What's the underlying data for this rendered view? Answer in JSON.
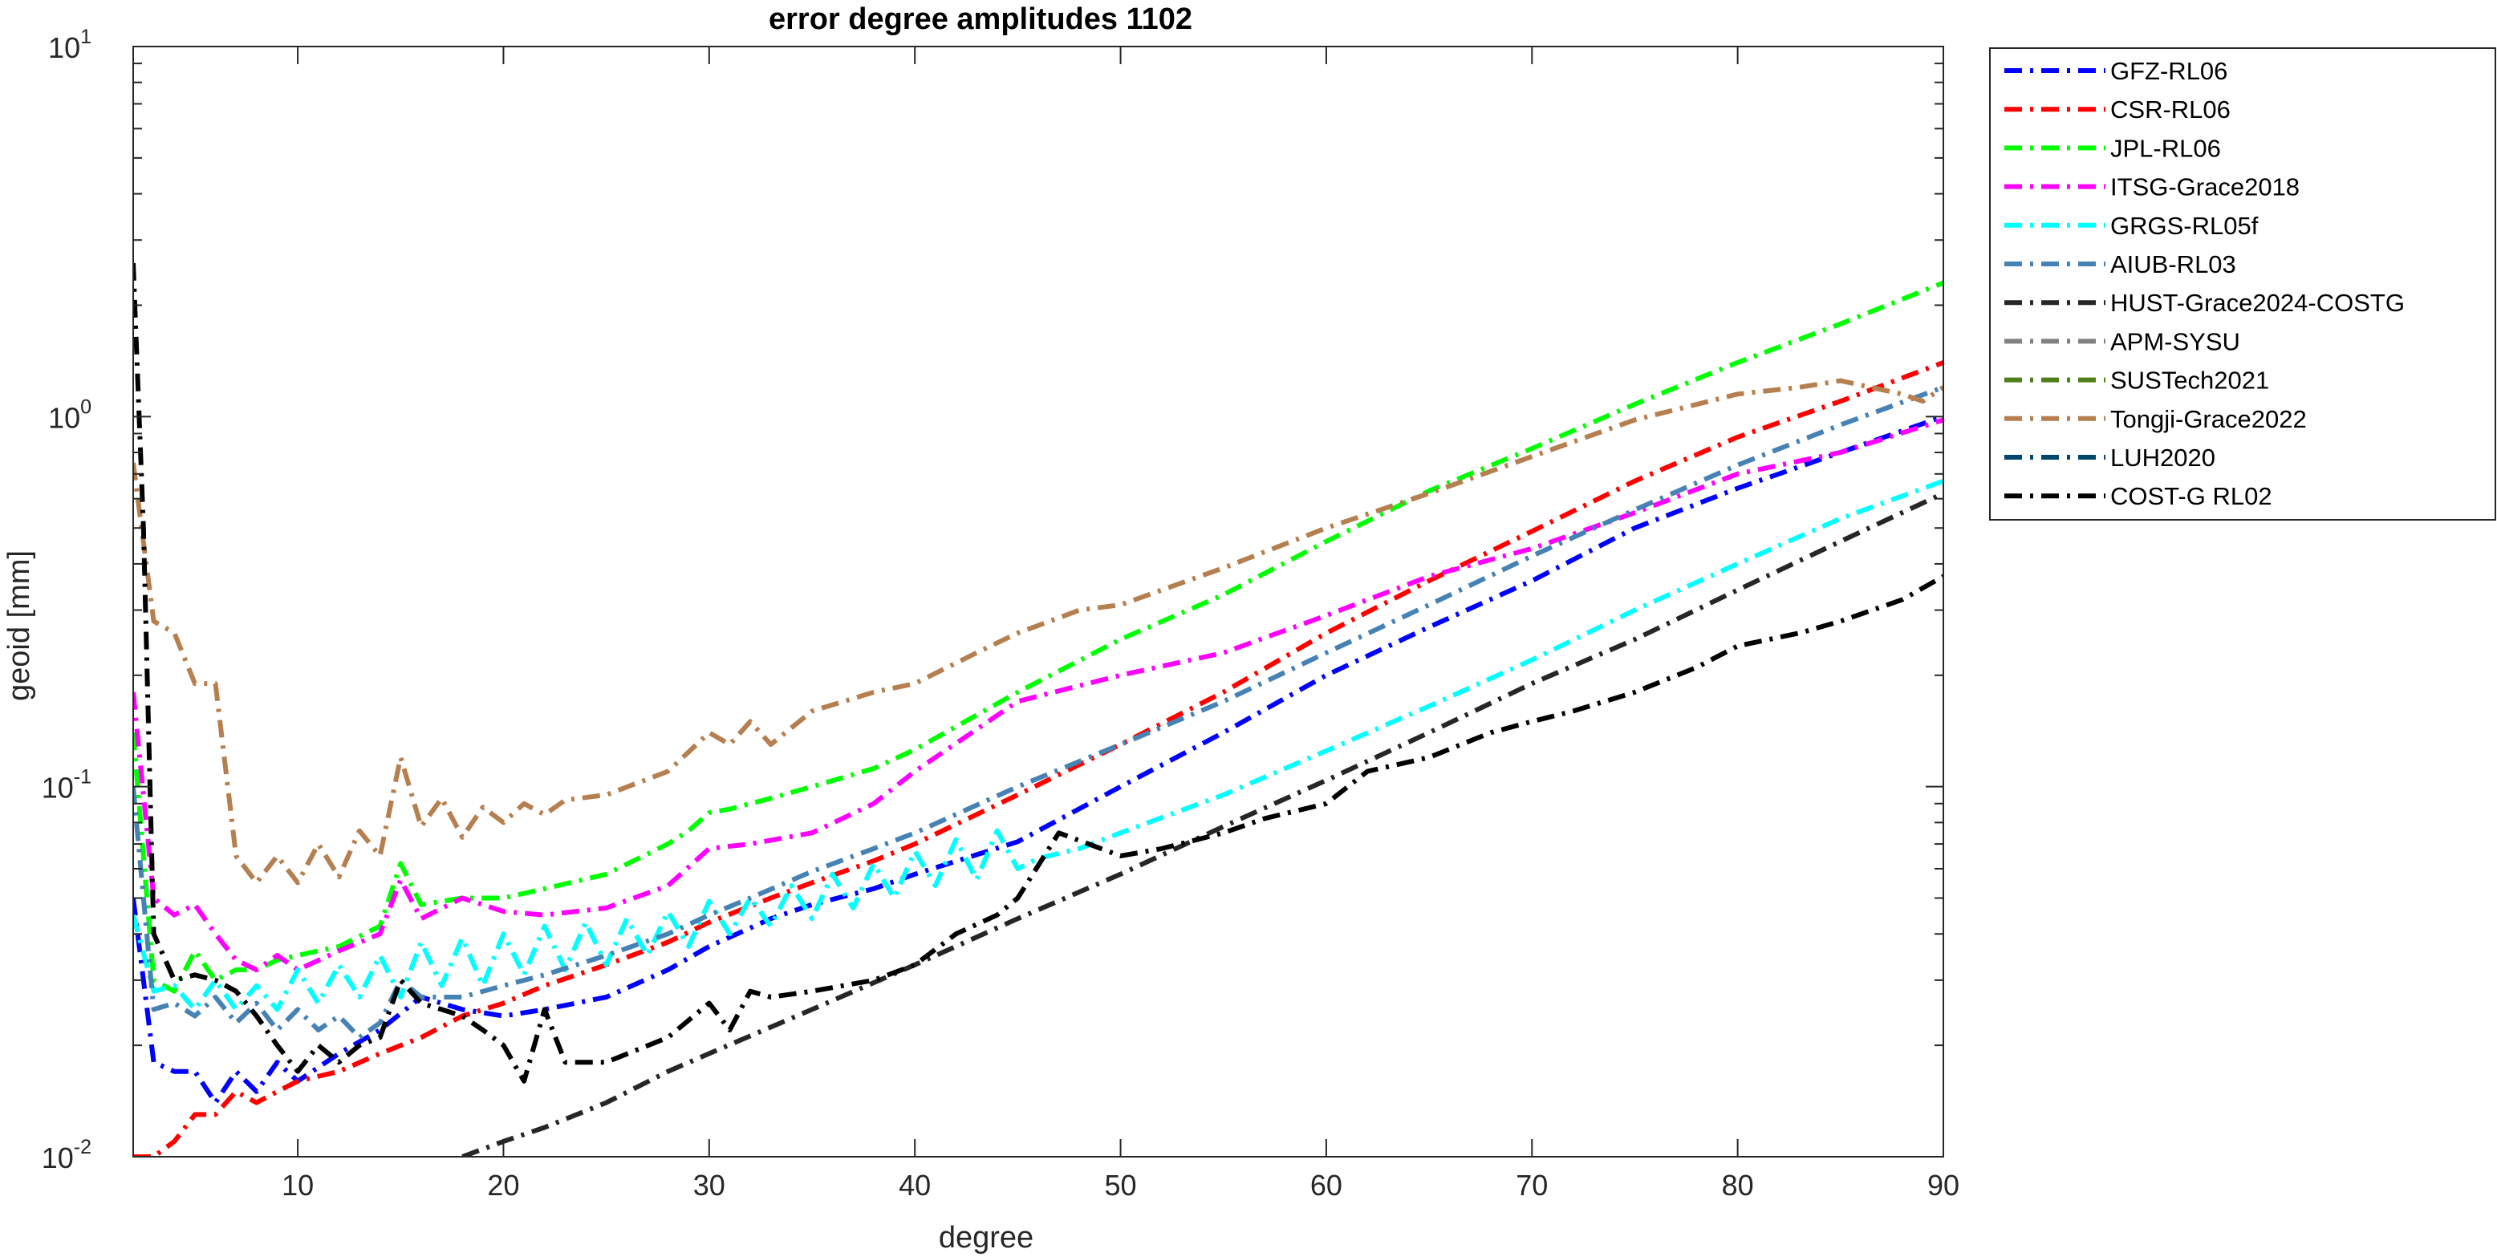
{
  "chart_data": {
    "type": "line",
    "title": "error degree amplitudes 1102",
    "xlabel": "degree",
    "ylabel": "geoid [mm]",
    "xlim": [
      2,
      90
    ],
    "ylim": [
      0.01,
      10
    ],
    "yscale": "log",
    "x_ticks": [
      10,
      20,
      30,
      40,
      50,
      60,
      70,
      80,
      90
    ],
    "y_ticks": [
      {
        "value": 0.01,
        "base": "10",
        "exp": "-2"
      },
      {
        "value": 0.1,
        "base": "10",
        "exp": "-1"
      },
      {
        "value": 1,
        "base": "10",
        "exp": "0"
      },
      {
        "value": 10,
        "base": "10",
        "exp": "1"
      }
    ],
    "grid": false,
    "legend_position": "outside-right",
    "series": [
      {
        "name": "GFZ-RL06",
        "color": "#0000ff",
        "x": [
          2,
          3,
          4,
          5,
          6,
          7,
          8,
          9,
          10,
          12,
          14,
          16,
          18,
          20,
          22,
          25,
          28,
          30,
          33,
          35,
          38,
          40,
          45,
          50,
          55,
          60,
          65,
          70,
          75,
          80,
          85,
          90
        ],
        "y": [
          0.05,
          0.018,
          0.017,
          0.017,
          0.014,
          0.017,
          0.015,
          0.018,
          0.016,
          0.019,
          0.022,
          0.027,
          0.025,
          0.024,
          0.025,
          0.027,
          0.032,
          0.037,
          0.044,
          0.048,
          0.053,
          0.058,
          0.071,
          0.1,
          0.14,
          0.2,
          0.27,
          0.36,
          0.5,
          0.64,
          0.8,
          1.0
        ]
      },
      {
        "name": "CSR-RL06",
        "color": "#ff0000",
        "x": [
          2,
          3,
          4,
          5,
          6,
          7,
          8,
          9,
          10,
          12,
          14,
          16,
          18,
          20,
          22,
          25,
          28,
          30,
          33,
          35,
          38,
          40,
          45,
          50,
          55,
          60,
          65,
          70,
          75,
          80,
          85,
          90
        ],
        "y": [
          0.01,
          0.01,
          0.011,
          0.013,
          0.013,
          0.015,
          0.014,
          0.015,
          0.016,
          0.017,
          0.019,
          0.021,
          0.024,
          0.026,
          0.029,
          0.033,
          0.038,
          0.043,
          0.05,
          0.055,
          0.063,
          0.07,
          0.095,
          0.13,
          0.18,
          0.26,
          0.36,
          0.49,
          0.67,
          0.88,
          1.1,
          1.4
        ]
      },
      {
        "name": "JPL-RL06",
        "color": "#00ff00",
        "x": [
          2,
          3,
          4,
          5,
          6,
          7,
          8,
          9,
          10,
          12,
          14,
          15,
          16,
          18,
          20,
          22,
          25,
          28,
          29,
          30,
          31,
          33,
          35,
          38,
          40,
          45,
          50,
          55,
          60,
          65,
          70,
          75,
          80,
          85,
          90
        ],
        "y": [
          0.14,
          0.03,
          0.028,
          0.036,
          0.03,
          0.032,
          0.032,
          0.034,
          0.035,
          0.037,
          0.042,
          0.062,
          0.048,
          0.05,
          0.05,
          0.053,
          0.058,
          0.07,
          0.076,
          0.085,
          0.087,
          0.093,
          0.1,
          0.112,
          0.126,
          0.18,
          0.25,
          0.33,
          0.46,
          0.63,
          0.82,
          1.08,
          1.4,
          1.78,
          2.3
        ]
      },
      {
        "name": "ITSG-Grace2018",
        "color": "#ff00ff",
        "x": [
          2,
          3,
          4,
          5,
          6,
          7,
          8,
          9,
          10,
          12,
          14,
          15,
          16,
          18,
          20,
          22,
          25,
          28,
          30,
          32,
          35,
          38,
          40,
          45,
          50,
          55,
          60,
          65,
          70,
          75,
          80,
          85,
          90
        ],
        "y": [
          0.18,
          0.05,
          0.045,
          0.048,
          0.04,
          0.034,
          0.032,
          0.035,
          0.032,
          0.036,
          0.04,
          0.056,
          0.044,
          0.05,
          0.046,
          0.045,
          0.047,
          0.054,
          0.068,
          0.07,
          0.075,
          0.09,
          0.11,
          0.17,
          0.2,
          0.23,
          0.29,
          0.37,
          0.44,
          0.55,
          0.7,
          0.8,
          0.98
        ]
      },
      {
        "name": "GRGS-RL05f",
        "color": "#00ffff",
        "x": [
          2,
          3,
          4,
          5,
          6,
          7,
          8,
          9,
          10,
          11,
          12,
          13,
          14,
          15,
          16,
          17,
          18,
          19,
          20,
          21,
          22,
          23,
          24,
          25,
          26,
          27,
          28,
          29,
          30,
          31,
          32,
          33,
          34,
          35,
          36,
          37,
          38,
          39,
          40,
          41,
          42,
          43,
          44,
          45,
          46,
          48,
          50,
          55,
          60,
          65,
          70,
          75,
          80,
          85,
          90
        ],
        "y": [
          0.045,
          0.028,
          0.029,
          0.025,
          0.03,
          0.025,
          0.029,
          0.025,
          0.032,
          0.026,
          0.033,
          0.027,
          0.035,
          0.027,
          0.038,
          0.029,
          0.039,
          0.029,
          0.04,
          0.031,
          0.042,
          0.032,
          0.043,
          0.033,
          0.044,
          0.035,
          0.046,
          0.037,
          0.049,
          0.04,
          0.05,
          0.042,
          0.054,
          0.044,
          0.058,
          0.047,
          0.062,
          0.05,
          0.067,
          0.054,
          0.072,
          0.056,
          0.076,
          0.06,
          0.064,
          0.068,
          0.075,
          0.095,
          0.125,
          0.165,
          0.22,
          0.3,
          0.4,
          0.53,
          0.67
        ]
      },
      {
        "name": "AIUB-RL03",
        "color": "#4682b4",
        "x": [
          2,
          3,
          4,
          5,
          6,
          7,
          8,
          9,
          10,
          11,
          12,
          13,
          14,
          15,
          16,
          18,
          20,
          22,
          25,
          28,
          30,
          32,
          35,
          38,
          40,
          45,
          50,
          55,
          60,
          65,
          70,
          75,
          80,
          85,
          90
        ],
        "y": [
          0.1,
          0.025,
          0.026,
          0.024,
          0.027,
          0.023,
          0.026,
          0.022,
          0.025,
          0.022,
          0.024,
          0.021,
          0.023,
          0.03,
          0.027,
          0.027,
          0.029,
          0.031,
          0.035,
          0.04,
          0.045,
          0.05,
          0.059,
          0.068,
          0.075,
          0.1,
          0.13,
          0.17,
          0.23,
          0.31,
          0.42,
          0.56,
          0.74,
          0.95,
          1.2
        ]
      },
      {
        "name": "HUST-Grace2024-COSTG",
        "color": "#262626",
        "x": [
          18,
          20,
          22,
          25,
          28,
          30,
          35,
          40,
          45,
          50,
          55,
          60,
          65,
          70,
          75,
          80,
          85,
          90
        ],
        "y": [
          0.01,
          0.011,
          0.012,
          0.014,
          0.017,
          0.019,
          0.025,
          0.033,
          0.044,
          0.058,
          0.078,
          0.104,
          0.14,
          0.19,
          0.25,
          0.34,
          0.46,
          0.62
        ]
      },
      {
        "name": "APM-SYSU",
        "color": "#808080",
        "x": [],
        "y": []
      },
      {
        "name": "SUSTech2021",
        "color": "#4f7f1a",
        "x": [],
        "y": []
      },
      {
        "name": "Tongji-Grace2022",
        "color": "#b57f4f",
        "x": [
          2,
          3,
          4,
          5,
          6,
          7,
          8,
          9,
          10,
          11,
          12,
          13,
          14,
          15,
          16,
          17,
          18,
          19,
          20,
          21,
          22,
          23,
          25,
          28,
          30,
          31,
          32,
          33,
          35,
          38,
          40,
          43,
          45,
          48,
          50,
          55,
          60,
          65,
          70,
          75,
          80,
          83,
          85,
          88,
          89,
          90
        ],
        "y": [
          0.75,
          0.28,
          0.26,
          0.19,
          0.19,
          0.065,
          0.055,
          0.065,
          0.055,
          0.07,
          0.057,
          0.076,
          0.065,
          0.12,
          0.078,
          0.093,
          0.073,
          0.088,
          0.08,
          0.09,
          0.084,
          0.092,
          0.095,
          0.11,
          0.14,
          0.13,
          0.15,
          0.13,
          0.16,
          0.18,
          0.19,
          0.23,
          0.26,
          0.3,
          0.31,
          0.39,
          0.5,
          0.62,
          0.78,
          0.98,
          1.15,
          1.2,
          1.25,
          1.15,
          1.1,
          1.2
        ]
      },
      {
        "name": "LUH2020",
        "color": "#00476b",
        "x": [],
        "y": []
      },
      {
        "name": "COST-G RL02",
        "color": "#000000",
        "x": [
          2,
          2.5,
          3,
          4,
          5,
          6,
          7,
          8,
          9,
          10,
          11,
          12,
          13,
          14,
          15,
          16,
          17,
          18,
          19,
          20,
          21,
          22,
          23,
          25,
          28,
          30,
          31,
          32,
          33,
          35,
          38,
          40,
          42,
          44,
          45,
          47,
          50,
          52,
          55,
          57,
          60,
          62,
          65,
          68,
          70,
          72,
          75,
          78,
          80,
          83,
          85,
          88,
          90
        ],
        "y": [
          2.6,
          0.5,
          0.04,
          0.03,
          0.031,
          0.03,
          0.028,
          0.024,
          0.02,
          0.017,
          0.02,
          0.018,
          0.02,
          0.021,
          0.03,
          0.026,
          0.025,
          0.024,
          0.022,
          0.02,
          0.016,
          0.025,
          0.018,
          0.018,
          0.021,
          0.026,
          0.022,
          0.028,
          0.027,
          0.028,
          0.03,
          0.033,
          0.04,
          0.045,
          0.05,
          0.075,
          0.065,
          0.068,
          0.075,
          0.082,
          0.09,
          0.11,
          0.12,
          0.14,
          0.15,
          0.16,
          0.18,
          0.21,
          0.24,
          0.26,
          0.28,
          0.32,
          0.37
        ]
      }
    ]
  }
}
